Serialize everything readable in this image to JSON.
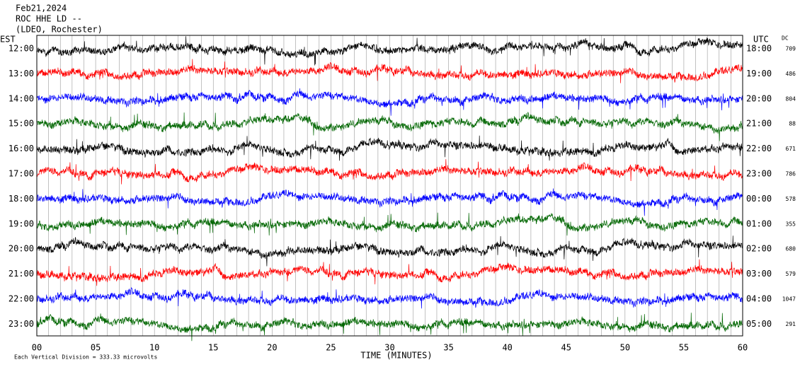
{
  "header": {
    "date": "Feb21,2024",
    "station": "ROC HHE LD --",
    "network": "(LDEO, Rochester)"
  },
  "left_axis": {
    "label": "EST",
    "ticks": [
      "12:00",
      "13:00",
      "14:00",
      "15:00",
      "16:00",
      "17:00",
      "18:00",
      "19:00",
      "20:00",
      "21:00",
      "22:00",
      "23:00"
    ]
  },
  "right_axis": {
    "label": "UTC",
    "ticks": [
      "18:00",
      "19:00",
      "20:00",
      "21:00",
      "22:00",
      "23:00",
      "00:00",
      "01:00",
      "02:00",
      "03:00",
      "04:00",
      "05:00"
    ]
  },
  "dc": {
    "label": "DC",
    "values": [
      709,
      486,
      804,
      88,
      671,
      786,
      578,
      355,
      680,
      579,
      1047,
      291
    ]
  },
  "x_axis": {
    "title": "TIME (MINUTES)",
    "ticks": [
      "00",
      "05",
      "10",
      "15",
      "20",
      "25",
      "30",
      "35",
      "40",
      "45",
      "50",
      "55",
      "60"
    ]
  },
  "footer": "Each Vertical Division =  333.33 microvolts",
  "trace_colors": [
    "#000000",
    "#ff0000",
    "#0000ff",
    "#006600"
  ]
}
